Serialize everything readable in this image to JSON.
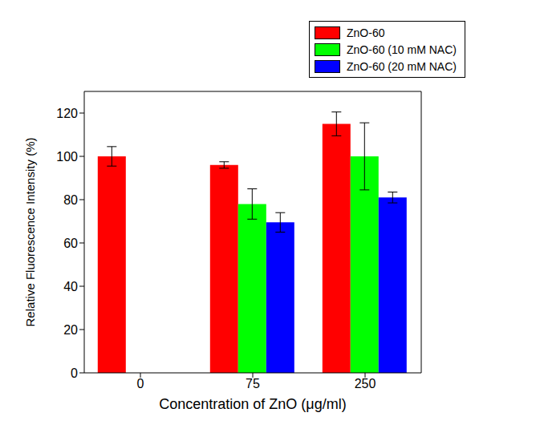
{
  "chart_data": {
    "type": "bar",
    "xlabel": "Concentration of ZnO (μg/ml)",
    "ylabel": "Relative Fluorescence Intensity (%)",
    "categories": [
      "0",
      "75",
      "250"
    ],
    "series": [
      {
        "name": "ZnO-60",
        "color": "#ff0000",
        "values": [
          100,
          96,
          115
        ],
        "errors": [
          4.5,
          1.5,
          5.5
        ]
      },
      {
        "name": "ZnO-60 (10 mM NAC)",
        "color": "#00ff00",
        "values": [
          null,
          78,
          100
        ],
        "errors": [
          null,
          7,
          15.5
        ]
      },
      {
        "name": "ZnO-60 (20 mM NAC)",
        "color": "#0000ff",
        "values": [
          null,
          69.5,
          81
        ],
        "errors": [
          null,
          4.5,
          2.5
        ]
      }
    ],
    "ylim": [
      0,
      130
    ],
    "yticks": [
      0,
      20,
      40,
      60,
      80,
      100,
      120
    ],
    "grid": false,
    "legend": "upper right"
  }
}
